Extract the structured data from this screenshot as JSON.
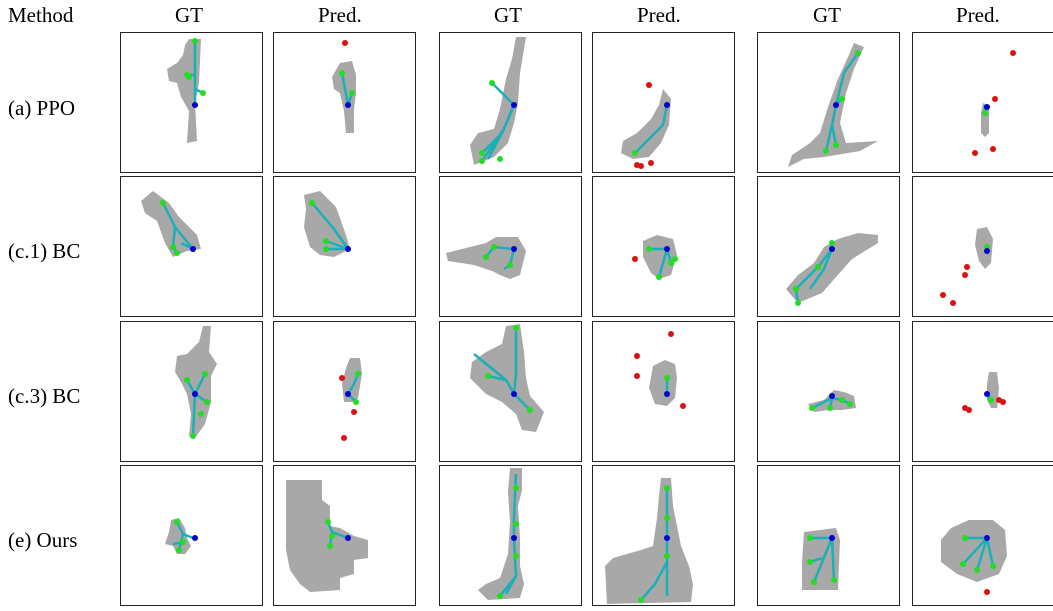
{
  "header": {
    "method_label": "Method",
    "columns": [
      "GT",
      "Pred.",
      "GT",
      "Pred.",
      "GT",
      "Pred."
    ]
  },
  "rows": [
    {
      "label": "(a) PPO"
    },
    {
      "label": "(c.1) BC"
    },
    {
      "label": "(c.3) BC"
    },
    {
      "label": "(e) Ours"
    }
  ],
  "colors": {
    "region": "#a8a8a8",
    "skeleton": "#1ab0b8",
    "endpoint": "#22dd22",
    "root": "#0000cc",
    "invalid": "#dd1111",
    "border": "#222222"
  }
}
